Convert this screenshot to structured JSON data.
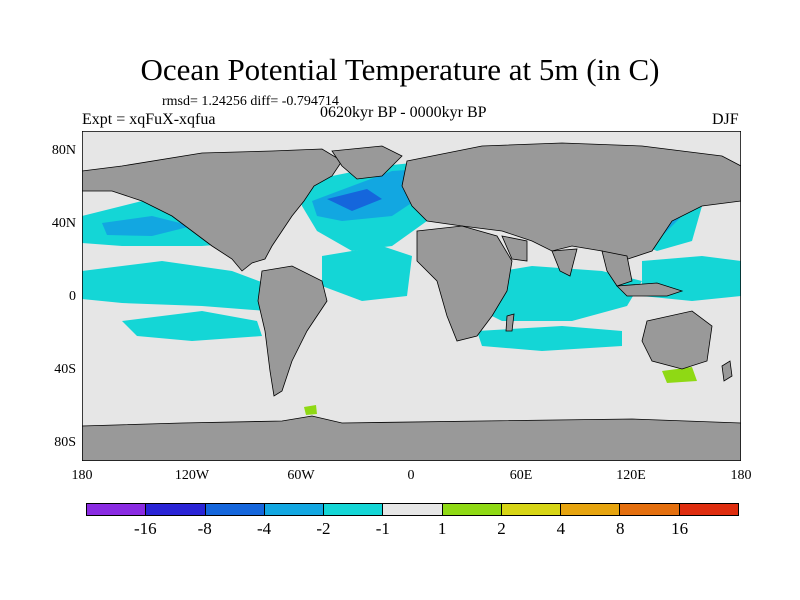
{
  "title": "Ocean Potential Temperature at 5m (in C)",
  "stats": "rmsd= 1.24256 diff= -0.794714",
  "expt": "Expt = xqFuX-xqfua",
  "period": "0620kyr BP - 0000kyr BP",
  "season": "DJF",
  "y_ticks": [
    "80N",
    "40N",
    "0",
    "40S",
    "80S"
  ],
  "x_ticks": [
    "180",
    "120W",
    "60W",
    "0",
    "60E",
    "120E",
    "180"
  ],
  "colorbar": {
    "colors": [
      "#8a2be2",
      "#2a24d6",
      "#1566dc",
      "#12a7e1",
      "#14d6d6",
      "#e6e6e6",
      "#8fd914",
      "#d7d516",
      "#e6a40f",
      "#e46f0e",
      "#df2d0f"
    ],
    "labels": [
      "-16",
      "-8",
      "-4",
      "-2",
      "-1",
      "1",
      "2",
      "4",
      "8",
      "16"
    ]
  },
  "colors": {
    "land": "#999999",
    "ocean_neutral": "#e6e6e6",
    "cool": "#14d6d6",
    "blue": "#12a7e1",
    "deep": "#1566dc",
    "warm": "#8fd914"
  }
}
